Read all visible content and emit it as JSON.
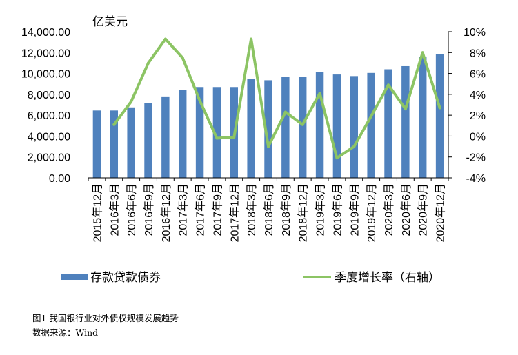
{
  "chart_data": {
    "type": "bar+line",
    "unit_label": "亿美元",
    "categories": [
      "2015年12月",
      "2016年3月",
      "2016年6月",
      "2016年9月",
      "2016年12月",
      "2017年3月",
      "2017年6月",
      "2017年9月",
      "2017年12月",
      "2018年3月",
      "2018年6月",
      "2018年9月",
      "2018年12月",
      "2019年3月",
      "2019年6月",
      "2019年9月",
      "2019年12月",
      "2020年3月",
      "2020年6月",
      "2020年9月",
      "2020年12月"
    ],
    "series": [
      {
        "name": "存款贷款债券",
        "type": "bar",
        "axis": "left",
        "color": "#4f81bd",
        "values": [
          6450,
          6450,
          6750,
          7150,
          7800,
          8450,
          8700,
          8700,
          8700,
          9500,
          9350,
          9650,
          9650,
          10150,
          9900,
          9750,
          10050,
          10400,
          10700,
          11600,
          11850
        ]
      },
      {
        "name": "季度增长率（右轴）",
        "type": "line",
        "axis": "right",
        "color": "#8cc464",
        "values": [
          null,
          1.1,
          3.3,
          7.0,
          9.3,
          7.5,
          3.4,
          -0.2,
          -0.1,
          9.3,
          -1.0,
          2.3,
          1.1,
          4.1,
          -2.1,
          -1.0,
          1.9,
          4.9,
          2.6,
          8.0,
          2.7
        ]
      }
    ],
    "left_axis": {
      "ylim": [
        0,
        14000
      ],
      "ticks": [
        "0.00",
        "2,000.00",
        "4,000.00",
        "6,000.00",
        "8,000.00",
        "10,000.00",
        "12,000.00",
        "14,000.00"
      ]
    },
    "right_axis": {
      "ylim": [
        -4,
        10
      ],
      "ticks": [
        "-4%",
        "-2%",
        "0%",
        "2%",
        "4%",
        "6%",
        "8%",
        "10%"
      ]
    },
    "legend": {
      "position": "bottom"
    }
  },
  "caption": {
    "figure_title": "图1 我国银行业对外债权规模发展趋势",
    "source": "数据来源：Wind"
  }
}
